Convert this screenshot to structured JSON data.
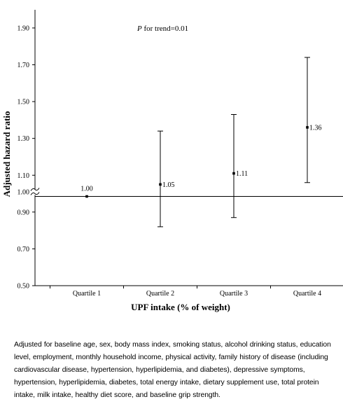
{
  "chart_data": {
    "type": "scatter",
    "subtype": "error-bar",
    "xlabel": "UPF intake (% of weight)",
    "ylabel": "Adjusted hazard ratio",
    "categories": [
      "Quartile 1",
      "Quartile 2",
      "Quartile 3",
      "Quartile 4"
    ],
    "values": [
      1.0,
      1.05,
      1.11,
      1.36
    ],
    "value_labels": [
      "1.00",
      "1.05",
      "1.11",
      "1.36"
    ],
    "ci_lower": [
      1.0,
      0.82,
      0.87,
      1.06
    ],
    "ci_upper": [
      1.0,
      1.34,
      1.43,
      1.74
    ],
    "y_ticks": [
      {
        "value": 0.5,
        "label": "0.50"
      },
      {
        "value": 0.7,
        "label": "0.70"
      },
      {
        "value": 0.9,
        "label": "0.90"
      },
      {
        "value": 1.1,
        "label": "1.10"
      },
      {
        "value": 1.3,
        "label": "1.30"
      },
      {
        "value": 1.5,
        "label": "1.50"
      },
      {
        "value": 1.7,
        "label": "1.70"
      },
      {
        "value": 1.9,
        "label": "1.90"
      }
    ],
    "reference_line": {
      "value": 1.0,
      "label": "1.00"
    },
    "annotation": {
      "italic": "P",
      "text": " for trend=0.01"
    },
    "ylim": [
      0.5,
      2.0
    ],
    "axis_break": true,
    "grid": false,
    "legend": "none",
    "colors": {
      "marker": "#000000",
      "line": "#000000",
      "text": "#000000"
    }
  },
  "footnote": "Adjusted for baseline age, sex, body mass index, smoking status, alcohol drinking status, education level, employment, monthly household income, physical activity, family history of disease (including cardiovascular disease, hypertension, hyperlipidemia, and diabetes), depressive symptoms, hypertension, hyperlipidemia, diabetes, total energy intake, dietary supplement use, total protein intake, milk intake, healthy diet score, and baseline grip strength."
}
